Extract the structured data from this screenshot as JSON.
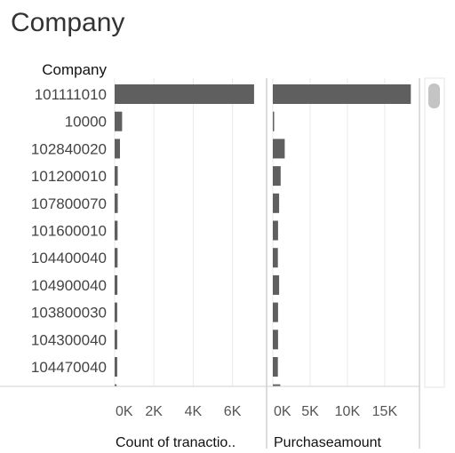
{
  "title": "Company",
  "row_header": "Company",
  "colors": {
    "bar": "#5f5f5f",
    "grid": "#e9e9e9",
    "divider": "#b9b9b9",
    "scroll_thumb": "#c4c4c4"
  },
  "chart_data": {
    "type": "bar",
    "orientation": "horizontal",
    "categories": [
      "101111010",
      "10000",
      "102840020",
      "101200010",
      "107800070",
      "101600010",
      "104400040",
      "104900040",
      "103800030",
      "104300040",
      "104470040"
    ],
    "partial_next_row": true,
    "panels": [
      {
        "axis_title": "Count of tranactio..",
        "ticks": [
          {
            "v": 0,
            "label": "0K"
          },
          {
            "v": 2000,
            "label": "2K"
          },
          {
            "v": 4000,
            "label": "4K"
          },
          {
            "v": 6000,
            "label": "6K"
          }
        ],
        "xlim": [
          0,
          7600
        ],
        "values": [
          7100,
          380,
          270,
          160,
          160,
          150,
          150,
          140,
          130,
          130,
          130
        ],
        "partial_value": 100
      },
      {
        "axis_title": "Purchaseamount",
        "ticks": [
          {
            "v": 0,
            "label": "0K"
          },
          {
            "v": 5000,
            "label": "5K"
          },
          {
            "v": 10000,
            "label": "10K"
          },
          {
            "v": 15000,
            "label": "15K"
          }
        ],
        "xlim": [
          0,
          19300
        ],
        "values": [
          18500,
          80,
          1600,
          1050,
          850,
          700,
          680,
          850,
          700,
          700,
          680
        ],
        "partial_value": 1000
      }
    ],
    "grid": true,
    "legend": "none"
  }
}
